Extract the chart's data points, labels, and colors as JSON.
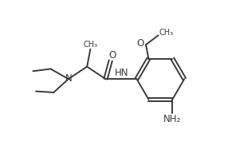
{
  "background_color": "#ffffff",
  "line_color": "#3a3a3a",
  "line_width": 1.4,
  "font_size": 8.5,
  "fig_width": 2.86,
  "fig_height": 1.87,
  "dpi": 100,
  "xlim": [
    0,
    10
  ],
  "ylim": [
    0,
    6.6
  ]
}
